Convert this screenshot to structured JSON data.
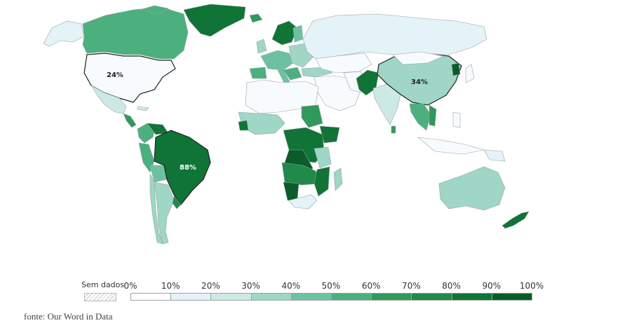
{
  "map": {
    "labels": {
      "usa": "24%",
      "china": "34%",
      "brazil": "88%"
    }
  },
  "legend": {
    "no_data_label": "Sem dados",
    "ticks": [
      "0%",
      "10%",
      "20%",
      "30%",
      "40%",
      "50%",
      "60%",
      "70%",
      "80%",
      "90%",
      "100%"
    ],
    "bin_colors": [
      "#ffffff",
      "#e3f3f8",
      "#cde9e6",
      "#9fd6c5",
      "#6cc2a0",
      "#4bb07e",
      "#2f9a5b",
      "#1f8a4a",
      "#0f7436",
      "#0a5c2a"
    ]
  },
  "source": "fonte: Our Word in Data"
}
